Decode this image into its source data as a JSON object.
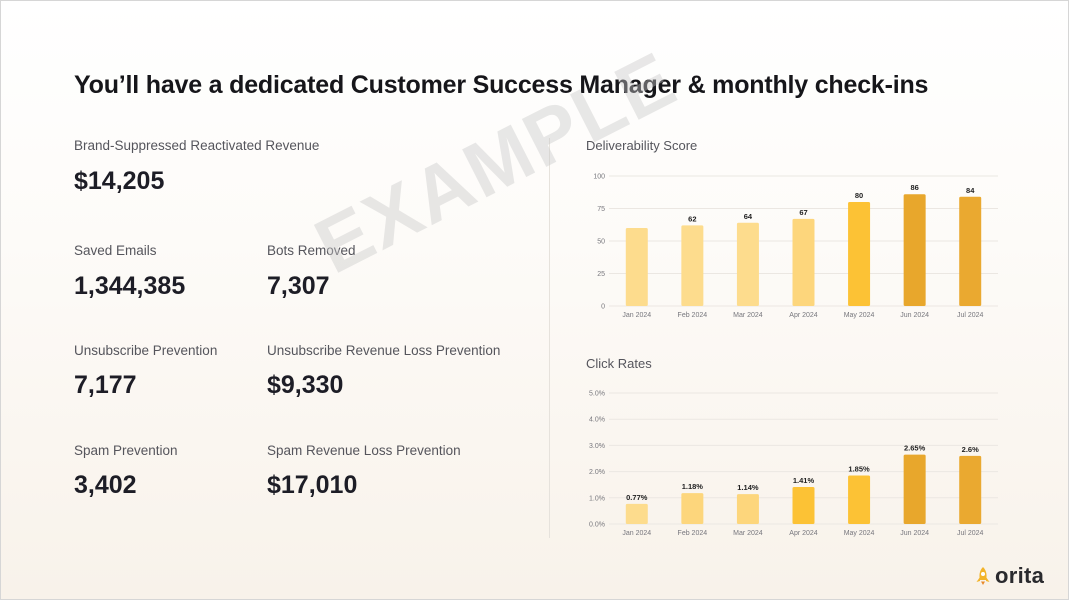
{
  "headline": "You’ll have a dedicated Customer Success Manager & monthly check-ins",
  "metrics": [
    {
      "label": "Brand-Suppressed Reactivated Revenue",
      "value": "$14,205"
    },
    {
      "label": "Saved Emails",
      "value": "1,344,385"
    },
    {
      "label": "Bots Removed",
      "value": "7,307"
    },
    {
      "label": "Unsubscribe Prevention",
      "value": "7,177"
    },
    {
      "label": "Unsubscribe Revenue Loss Prevention",
      "value": "$9,330"
    },
    {
      "label": "Spam Prevention",
      "value": "3,402"
    },
    {
      "label": "Spam Revenue Loss Prevention",
      "value": "$17,010"
    }
  ],
  "watermark": "EXAMPLE",
  "logo": {
    "text": "orita",
    "icon": "rocket-icon",
    "color": "#f2b42a"
  },
  "chart_data": [
    {
      "type": "bar",
      "title": "Deliverability Score",
      "categories": [
        "Jan 2024",
        "Feb 2024",
        "Mar 2024",
        "Apr 2024",
        "May 2024",
        "Jun 2024",
        "Jul 2024"
      ],
      "values": [
        60,
        62,
        64,
        67,
        80,
        86,
        84
      ],
      "data_labels": [
        "",
        "62",
        "64",
        "67",
        "80",
        "86",
        "84"
      ],
      "ylim": [
        0,
        100
      ],
      "yticks": [
        0,
        25,
        50,
        75,
        100
      ],
      "ytick_labels": [
        "0",
        "25",
        "50",
        "75",
        "100"
      ],
      "colors": [
        "#fddc8d",
        "#fddc8d",
        "#fddc8d",
        "#fdd67c",
        "#fcc235",
        "#e8a72c",
        "#eaa930"
      ],
      "grid": true,
      "xlabel": "",
      "ylabel": ""
    },
    {
      "type": "bar",
      "title": "Click Rates",
      "categories": [
        "Jan 2024",
        "Feb 2024",
        "Mar 2024",
        "Apr 2024",
        "May 2024",
        "Jun 2024",
        "Jul 2024"
      ],
      "values": [
        0.77,
        1.18,
        1.14,
        1.41,
        1.85,
        2.65,
        2.6
      ],
      "data_labels": [
        "0.77%",
        "1.18%",
        "1.14%",
        "1.41%",
        "1.85%",
        "2.65%",
        "2.6%"
      ],
      "ylim": [
        0,
        5
      ],
      "yticks": [
        0,
        1,
        2,
        3,
        4,
        5
      ],
      "ytick_labels": [
        "0.0%",
        "1.0%",
        "2.0%",
        "3.0%",
        "4.0%",
        "5.0%"
      ],
      "colors": [
        "#fddc8d",
        "#fdd67c",
        "#fdd67c",
        "#fcc235",
        "#fcc235",
        "#e8a72c",
        "#eaa930"
      ],
      "grid": true,
      "xlabel": "",
      "ylabel": ""
    }
  ]
}
